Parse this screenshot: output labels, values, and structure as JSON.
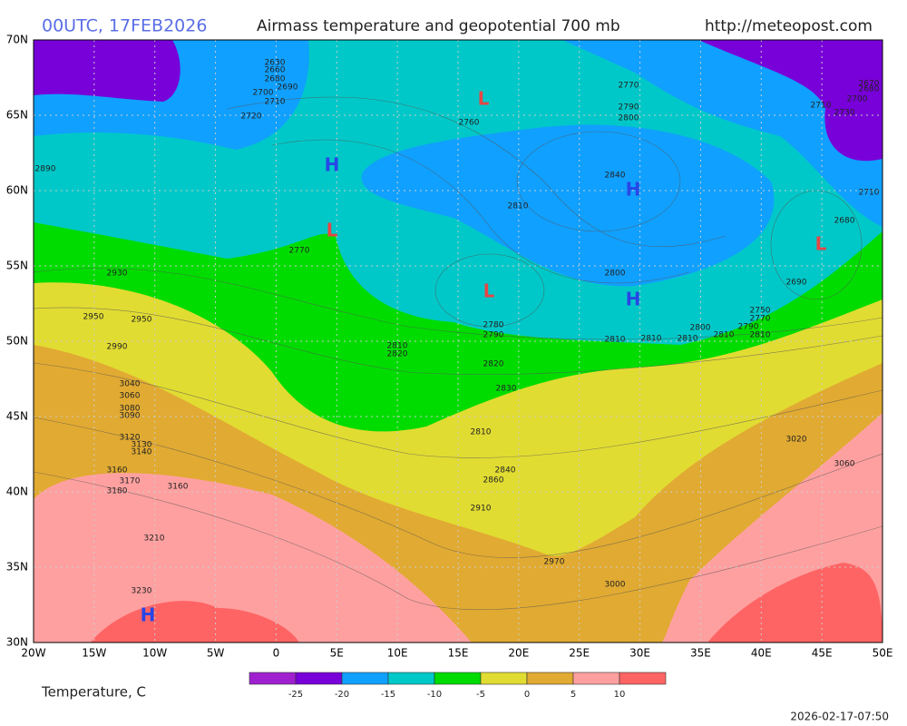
{
  "header": {
    "date": "00UTC, 17FEB2026",
    "title": "Airmass temperature and geopotential 700 mb",
    "url": "http://meteopost.com"
  },
  "lat_labels": [
    "70N",
    "65N",
    "60N",
    "55N",
    "50N",
    "45N",
    "40N",
    "35N",
    "30N"
  ],
  "lon_labels": [
    "20W",
    "15W",
    "10W",
    "5W",
    "0",
    "5E",
    "10E",
    "15E",
    "20E",
    "25E",
    "30E",
    "35E",
    "40E",
    "45E",
    "50E"
  ],
  "pressure_centers": [
    "L",
    "H",
    "L",
    "H",
    "L",
    "L",
    "H",
    "H"
  ],
  "contour_labels": [
    "2630",
    "2660",
    "2680",
    "2690",
    "2700",
    "2710",
    "2720",
    "2760",
    "2770",
    "2790",
    "2800",
    "2840",
    "2810",
    "2890",
    "2770",
    "2930",
    "2950",
    "2950",
    "2990",
    "2810",
    "2820",
    "2780",
    "2790",
    "2820",
    "2830",
    "3040",
    "3060",
    "3080",
    "3090",
    "3120",
    "3130",
    "3140",
    "2810",
    "2840",
    "2860",
    "3160",
    "3170",
    "3180",
    "3160",
    "2910",
    "3210",
    "2970",
    "3000",
    "3230",
    "2800",
    "2810",
    "2810",
    "2810",
    "2800",
    "2810",
    "2810",
    "2790",
    "2770",
    "2750",
    "2690",
    "2680",
    "2710",
    "3020",
    "3060",
    "2680",
    "2670",
    "2700",
    "2710",
    "2730"
  ],
  "legend": {
    "title": "Temperature, C",
    "ticks": [
      "-25",
      "-20",
      "-15",
      "-10",
      "-5",
      "0",
      "5",
      "10"
    ]
  },
  "timestamp": "2026-02-17-07:50"
}
